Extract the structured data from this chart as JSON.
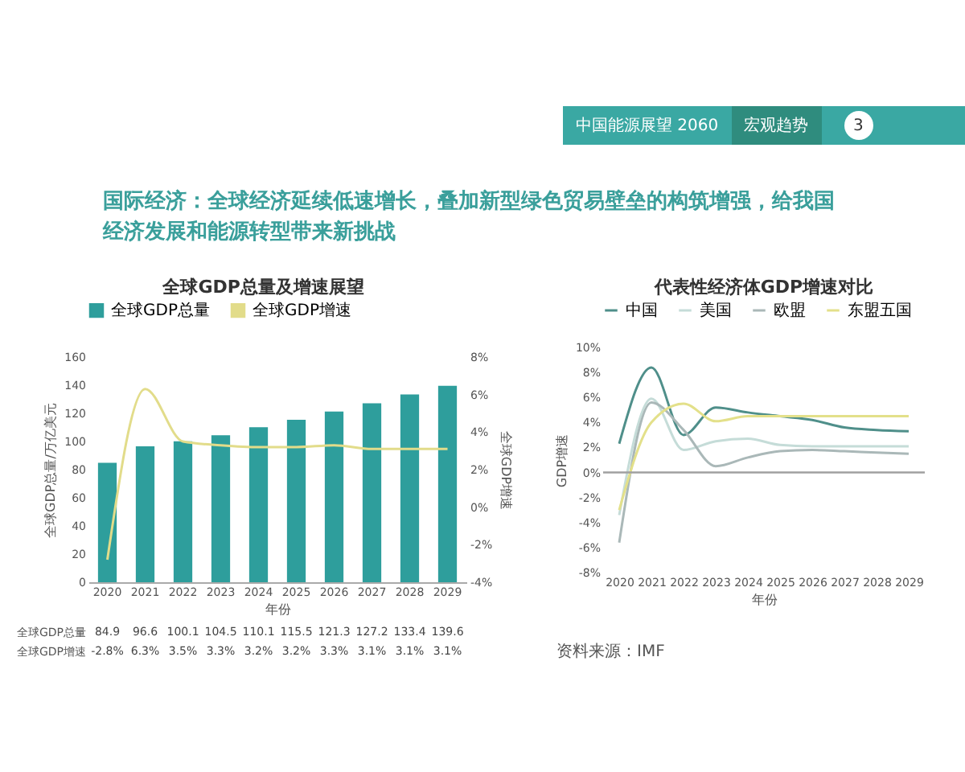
{
  "chart_data": [
    {
      "type": "other",
      "title": "国际经济：全球经济延续低速增长，叠加新型绿色贸易壁垒的构筑增强，给我国经济发展和能源转型带来新挑战",
      "annotations": [
        "中国能源展望 2060",
        "宏观趋势",
        "3"
      ]
    },
    {
      "type": "bar",
      "title": "全球GDP总量及增速展望",
      "categories": [
        "2020",
        "2021",
        "2022",
        "2023",
        "2024",
        "2025",
        "2026",
        "2027",
        "2028",
        "2029"
      ],
      "xlabel": "年份",
      "ylabel": "全球GDP总量/万亿美元",
      "y2label": "全球GDP增速",
      "legend": "top",
      "series": [
        {
          "name": "全球GDP总量",
          "color": "#2e9e9c",
          "values": [
            84.9,
            96.6,
            100.1,
            104.5,
            110.1,
            115.5,
            121.3,
            127.2,
            133.4,
            139.6
          ],
          "value_labels": [
            "84.9",
            "96.6",
            "100.1",
            "104.5",
            "110.1",
            "115.5",
            "121.3",
            "127.2",
            "133.4",
            "139.6"
          ]
        },
        {
          "name": "全球GDP增速",
          "type": "line",
          "axis": "y2",
          "color": "#e2dc8a",
          "values": [
            -2.8,
            6.3,
            3.5,
            3.3,
            3.2,
            3.2,
            3.3,
            3.1,
            3.1,
            3.1
          ],
          "value_labels": [
            "-2.8%",
            "6.3%",
            "3.5%",
            "3.3%",
            "3.2%",
            "3.2%",
            "3.3%",
            "3.1%",
            "3.1%",
            "3.1%"
          ]
        }
      ],
      "ylim": [
        0,
        160
      ],
      "yticks": [
        0,
        20,
        40,
        60,
        80,
        100,
        120,
        140,
        160
      ],
      "y2lim": [
        -4,
        8
      ],
      "y2ticks": [
        {
          "value": -4,
          "label": "-4%"
        },
        {
          "value": -2,
          "label": "-2%"
        },
        {
          "value": 0,
          "label": "0%"
        },
        {
          "value": 2,
          "label": "2%"
        },
        {
          "value": 4,
          "label": "4%"
        },
        {
          "value": 6,
          "label": "6%"
        },
        {
          "value": 8,
          "label": "8%"
        }
      ]
    },
    {
      "type": "line",
      "title": "代表性经济体GDP增速对比",
      "categories": [
        "2020",
        "2021",
        "2022",
        "2023",
        "2024",
        "2025",
        "2026",
        "2027",
        "2028",
        "2029"
      ],
      "xlabel": "年份",
      "ylabel": "GDP增速",
      "legend": "top",
      "series": [
        {
          "name": "中国",
          "color": "#4f8f8a",
          "values": [
            2.3,
            8.4,
            3.0,
            5.2,
            4.8,
            4.5,
            4.2,
            3.6,
            3.4,
            3.3
          ]
        },
        {
          "name": "美国",
          "color": "#c5dcd8",
          "values": [
            -3.4,
            5.9,
            1.8,
            2.5,
            2.7,
            2.2,
            2.1,
            2.1,
            2.1,
            2.1
          ]
        },
        {
          "name": "欧盟",
          "color": "#aab8b8",
          "values": [
            -5.6,
            5.6,
            3.4,
            0.5,
            1.2,
            1.7,
            1.8,
            1.7,
            1.6,
            1.5
          ]
        },
        {
          "name": "东盟五国",
          "color": "#e3e08a",
          "values": [
            -3.0,
            4.0,
            5.5,
            4.1,
            4.5,
            4.5,
            4.5,
            4.5,
            4.5,
            4.5
          ]
        }
      ],
      "ylim": [
        -8,
        10
      ],
      "yticks": [
        {
          "value": -8,
          "label": "-8%"
        },
        {
          "value": -6,
          "label": "-6%"
        },
        {
          "value": -4,
          "label": "-4%"
        },
        {
          "value": -2,
          "label": "-2%"
        },
        {
          "value": 0,
          "label": "0%"
        },
        {
          "value": 2,
          "label": "2%"
        },
        {
          "value": 4,
          "label": "4%"
        },
        {
          "value": 6,
          "label": "6%"
        },
        {
          "value": 8,
          "label": "8%"
        },
        {
          "value": 10,
          "label": "10%"
        }
      ],
      "ref_lines": [
        {
          "axis": "y",
          "value": 0,
          "color": "#a0a0a0"
        }
      ],
      "annotations": [
        "资料来源：IMF"
      ]
    }
  ]
}
